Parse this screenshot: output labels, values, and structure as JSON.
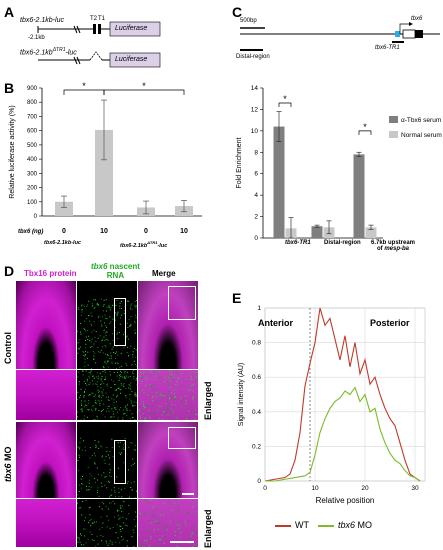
{
  "panel_a": {
    "label": "A",
    "construct1": {
      "name": "tbx6-2.1kb-luc",
      "start": "-2.1kb",
      "t2": "T2",
      "t1": "T1",
      "reporter": "Luciferase"
    },
    "construct2": {
      "name": "tbx6-2.1kb",
      "sup": "ΔTR1",
      "suffix": "-luc",
      "reporter": "Luciferase"
    }
  },
  "panel_b": {
    "label": "B",
    "sig1": "*",
    "sig2": "*",
    "row_label": "tbx6 (ng)",
    "doses": [
      "0",
      "10",
      "0",
      "10"
    ],
    "group1": "tbx6-2.1kb-luc",
    "group2": "tbx6-2.1kb",
    "group2_sup": "ΔTR1",
    "group2_suffix": "-luc"
  },
  "panel_c": {
    "label": "C",
    "scale": "500bp",
    "distal_label": "Distal-region",
    "gene_label": "tbx6",
    "tr1_label": "tbx6-TR1",
    "sig1": "*",
    "sig2": "*",
    "cat1": "tbx6-TR1",
    "cat2": "Distal-region",
    "cat3_line1": "6.7kb upstream",
    "cat3_line2_prefix": "of ",
    "cat3_line2_gene": "mesp-ba"
  },
  "panel_d": {
    "label": "D",
    "col1": "Tbx16 protein",
    "col2_gene": "tbx6",
    "col2_rest": " nascent",
    "col2_line2": "RNA",
    "col3": "Merge",
    "row_control": "Control",
    "row_mo_gene": "tbx6",
    "row_mo_rest": " MO",
    "enlarged1": "Enlarged",
    "enlarged2": "Enlarged"
  },
  "panel_e": {
    "label": "E",
    "anterior": "Anterior",
    "posterior": "Posterior",
    "legend": {
      "wt": "WT",
      "mo_gene": "tbx6",
      "mo_rest": " MO"
    }
  },
  "colors": {
    "wt_line": "#c0392b",
    "mo_line": "#7dbb2a",
    "dark_bar": "#7f7f7f",
    "light_bar": "#c8c8c8",
    "magenta": "#d020d0",
    "green": "#22cc22"
  },
  "chart_data": [
    {
      "panel": "B",
      "type": "bar",
      "ylabel": "Relative luciferase activity (%)",
      "ylim": [
        0,
        900
      ],
      "yticks": [
        0,
        100,
        200,
        300,
        400,
        500,
        600,
        700,
        800,
        900
      ],
      "categories": [
        "0",
        "10",
        "0",
        "10"
      ],
      "values": [
        100,
        605,
        60,
        70
      ],
      "errors": [
        40,
        210,
        45,
        40
      ]
    },
    {
      "panel": "C",
      "type": "bar",
      "ylabel": "Fold Enrichment",
      "ylim": [
        0,
        14
      ],
      "yticks": [
        0,
        2,
        4,
        6,
        8,
        10,
        12,
        14
      ],
      "categories": [
        "tbx6-TR1",
        "Distal-region",
        "6.7kb upstream of mesp-ba"
      ],
      "series": [
        {
          "name": "α-Tbx6 serum",
          "values": [
            10.4,
            1.1,
            7.8
          ],
          "errors": [
            1.4,
            0.1,
            0.2
          ]
        },
        {
          "name": "Normal serum",
          "values": [
            0.9,
            1.0,
            1.0
          ],
          "errors": [
            1.0,
            0.6,
            0.2
          ]
        }
      ]
    },
    {
      "panel": "E",
      "type": "line",
      "xlabel": "Relative position",
      "ylabel": "Signal intensity (AU)",
      "xlim": [
        0,
        32
      ],
      "ylim": [
        0,
        1
      ],
      "xticks": [
        0,
        10,
        20,
        30
      ],
      "yticks": [
        0,
        0.2,
        0.4,
        0.6,
        0.8,
        1
      ],
      "dashed_x": 9,
      "series": [
        {
          "name": "WT",
          "x": [
            0,
            2,
            4,
            5,
            6,
            7,
            8,
            9,
            10,
            11,
            12,
            13,
            14,
            15,
            16,
            17,
            18,
            19,
            20,
            21,
            22,
            23,
            24,
            25,
            26,
            27,
            28,
            29,
            30,
            31
          ],
          "y": [
            0,
            0.01,
            0.02,
            0.04,
            0.12,
            0.28,
            0.55,
            0.68,
            0.8,
            1.0,
            0.9,
            0.94,
            0.82,
            0.7,
            0.84,
            0.66,
            0.8,
            0.62,
            0.7,
            0.56,
            0.6,
            0.5,
            0.42,
            0.36,
            0.32,
            0.22,
            0.12,
            0.04,
            0.02,
            0.0
          ]
        },
        {
          "name": "tbx6 MO",
          "x": [
            0,
            2,
            4,
            6,
            8,
            9,
            10,
            11,
            12,
            13,
            14,
            15,
            16,
            17,
            18,
            19,
            20,
            21,
            22,
            23,
            24,
            25,
            26,
            27,
            28,
            29,
            30,
            31
          ],
          "y": [
            0,
            0.0,
            0.01,
            0.02,
            0.03,
            0.05,
            0.15,
            0.28,
            0.36,
            0.42,
            0.46,
            0.48,
            0.52,
            0.5,
            0.54,
            0.46,
            0.5,
            0.4,
            0.42,
            0.3,
            0.22,
            0.16,
            0.12,
            0.1,
            0.06,
            0.03,
            0.02,
            0.0
          ]
        }
      ]
    }
  ]
}
